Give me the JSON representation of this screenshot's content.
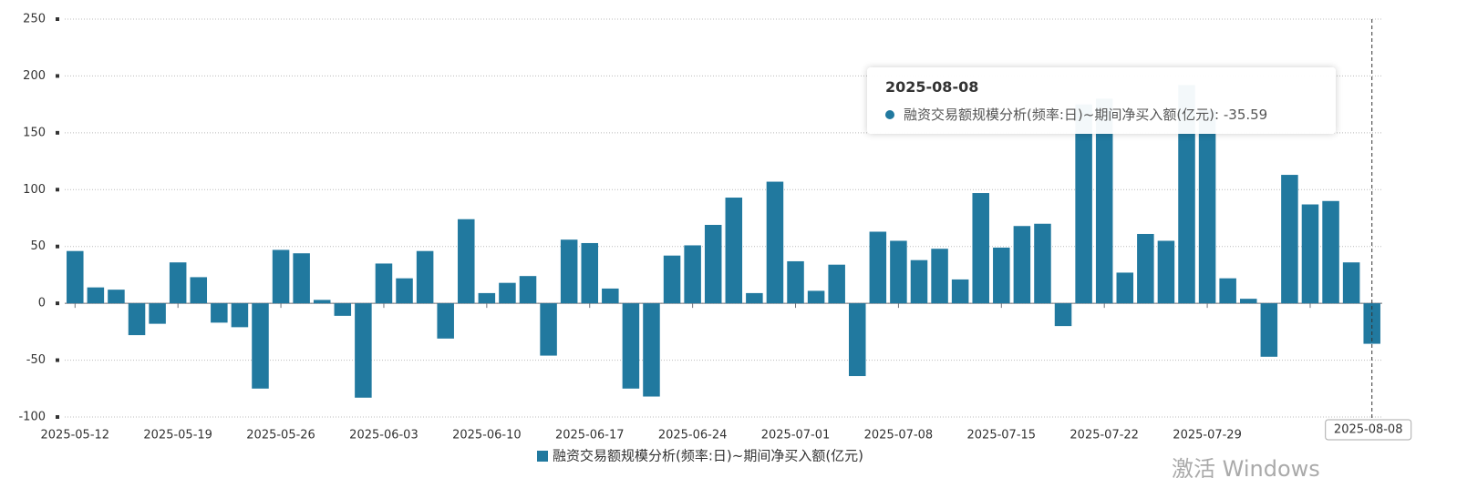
{
  "chart_data": {
    "type": "bar",
    "categories": [
      "2025-05-12",
      null,
      null,
      null,
      null,
      "2025-05-19",
      null,
      null,
      null,
      null,
      "2025-05-26",
      null,
      null,
      null,
      null,
      "2025-06-03",
      null,
      null,
      null,
      null,
      "2025-06-10",
      null,
      null,
      null,
      null,
      "2025-06-17",
      null,
      null,
      null,
      null,
      "2025-06-24",
      null,
      null,
      null,
      null,
      "2025-07-01",
      null,
      null,
      null,
      null,
      "2025-07-08",
      null,
      null,
      null,
      null,
      "2025-07-15",
      null,
      null,
      null,
      null,
      "2025-07-22",
      null,
      null,
      null,
      null,
      "2025-07-29",
      null,
      null,
      null,
      null,
      null,
      null,
      null,
      "2025-08-08"
    ],
    "series": [
      {
        "name": "融资交易额规模分析(频率:日)~期间净买入额(亿元)",
        "color": "#21799f",
        "values": [
          46,
          14,
          12,
          -28,
          -18,
          36,
          23,
          -17,
          -21,
          -75,
          47,
          44,
          3,
          -11,
          -83,
          35,
          22,
          46,
          -31,
          74,
          9,
          18,
          24,
          -46,
          56,
          53,
          13,
          -75,
          -82,
          42,
          51,
          69,
          93,
          9,
          107,
          37,
          11,
          34,
          -64,
          63,
          55,
          38,
          48,
          21,
          97,
          49,
          68,
          70,
          -20,
          175,
          180,
          27,
          61,
          55,
          192,
          170,
          22,
          4,
          -47,
          113,
          87,
          90,
          36,
          -35.59
        ]
      }
    ],
    "ylim": [
      -100,
      250
    ],
    "yticks": [
      -100,
      -50,
      0,
      50,
      100,
      150,
      200,
      250
    ],
    "grid": true,
    "tooltip": {
      "index": 63,
      "text": "融资交易额规模分析(频率:日)~期间净买入额(亿元):"
    },
    "watermark": "激活 Windows"
  }
}
